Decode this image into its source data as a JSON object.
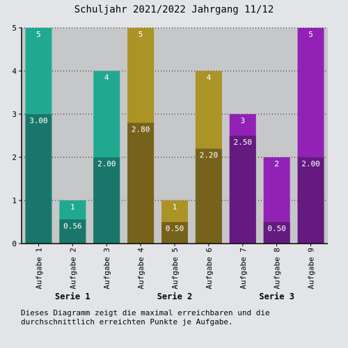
{
  "title": "Schuljahr 2021/2022 Jahrgang 11/12",
  "caption": "Dieses Diagramm zeigt die maximal erreichbaren und die durchschnittlich erreichten Punkte je Aufgabe.",
  "chart_data": {
    "type": "bar",
    "title": "Schuljahr 2021/2022 Jahrgang 11/12",
    "categories": [
      "Aufgabe 1",
      "Aufgabe 2",
      "Aufgabe 3",
      "Aufgabe 4",
      "Aufgabe 5",
      "Aufgabe 6",
      "Aufgabe 7",
      "Aufgabe 8",
      "Aufgabe 9"
    ],
    "groups": [
      {
        "name": "Serie 1",
        "categories": [
          0,
          1,
          2
        ]
      },
      {
        "name": "Serie 2",
        "categories": [
          3,
          4,
          5
        ]
      },
      {
        "name": "Serie 3",
        "categories": [
          6,
          7,
          8
        ]
      }
    ],
    "series": [
      {
        "values": [
          5,
          1,
          4,
          5,
          1,
          4,
          3,
          2,
          5
        ],
        "labels": [
          "5",
          "1",
          "4",
          "5",
          "1",
          "4",
          "3",
          "2",
          "5"
        ]
      },
      {
        "values": [
          3.0,
          0.56,
          2.0,
          2.8,
          0.5,
          2.2,
          2.5,
          0.5,
          2.0
        ],
        "labels": [
          "3.00",
          "0.56",
          "2.00",
          "2.80",
          "0.50",
          "2.20",
          "2.50",
          "0.50",
          "2.00"
        ]
      }
    ],
    "colors": {
      "light": [
        "#20a990",
        "#20a990",
        "#20a990",
        "#ab9325",
        "#ab9325",
        "#ab9325",
        "#9122b5",
        "#9122b5",
        "#9122b5"
      ],
      "dark": [
        "#18776a",
        "#18776a",
        "#18776a",
        "#76621a",
        "#76621a",
        "#76621a",
        "#641a7e",
        "#641a7e",
        "#641a7e"
      ]
    },
    "yticks": [
      0,
      1,
      2,
      3,
      4,
      5
    ],
    "ylim": [
      0,
      5
    ],
    "grid": true,
    "plot_background": "#c6c7c9"
  }
}
